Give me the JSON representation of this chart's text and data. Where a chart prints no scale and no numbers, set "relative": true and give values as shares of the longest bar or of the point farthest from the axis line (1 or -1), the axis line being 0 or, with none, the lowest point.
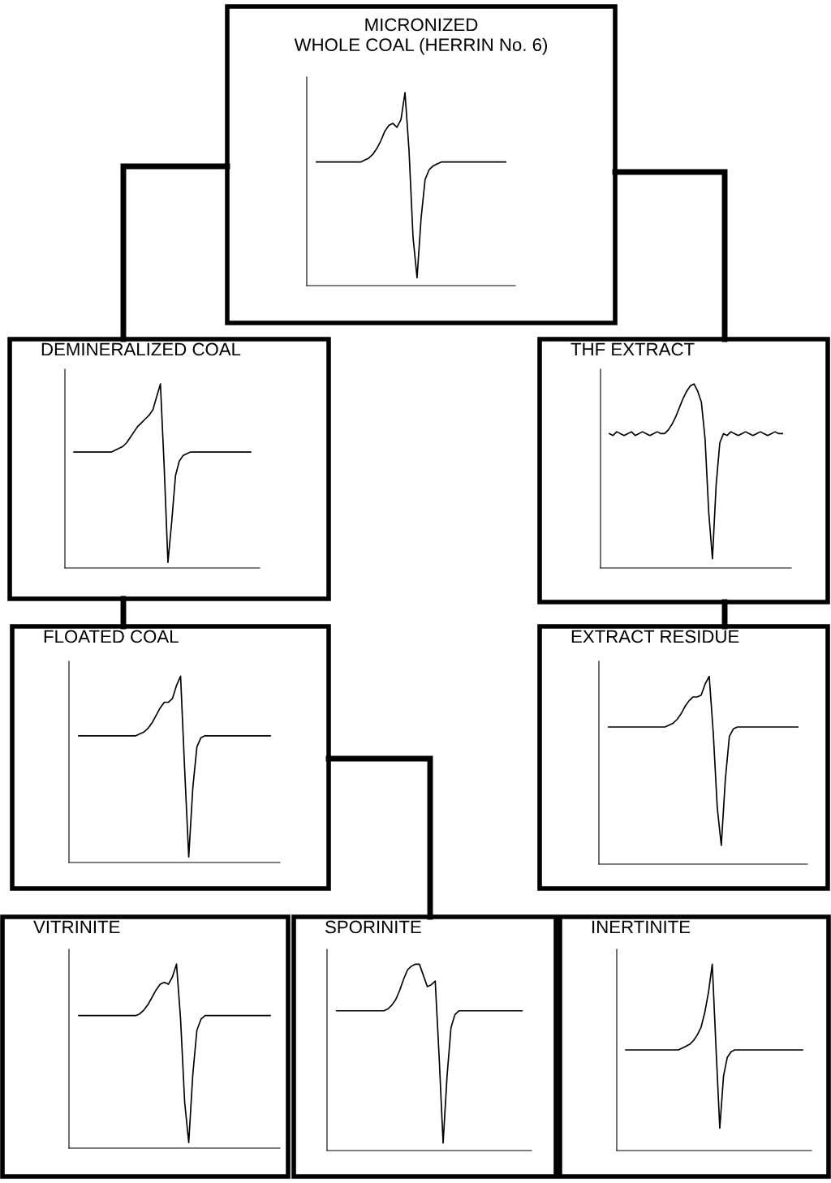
{
  "chart_data": [
    {
      "type": "line",
      "title": "MICRONIZED\nWHOLE COAL (HERRIN No. 6)",
      "relative": true,
      "color": "#000000",
      "categories": [
        null,
        null,
        null,
        null,
        null,
        null,
        null,
        null,
        null,
        null,
        null,
        null,
        null,
        null,
        null,
        null,
        null,
        null,
        null,
        null,
        null,
        null,
        null,
        null,
        null,
        null,
        null,
        null,
        null,
        null,
        null,
        null,
        null,
        null,
        null,
        null,
        null,
        null,
        null,
        null,
        null,
        null,
        null,
        null,
        null,
        null,
        null,
        null
      ],
      "values": [
        0.64,
        0.64,
        0.64,
        0.64,
        0.64,
        0.64,
        0.64,
        0.64,
        0.64,
        0.64,
        0.64,
        0.64,
        0.65,
        0.66,
        0.68,
        0.71,
        0.75,
        0.8,
        0.83,
        0.84,
        0.82,
        0.86,
        1.0,
        0.7,
        0.25,
        0.04,
        0.35,
        0.55,
        0.6,
        0.62,
        0.63,
        0.64,
        0.64,
        0.64,
        0.64,
        0.64,
        0.64,
        0.64,
        0.64,
        0.64,
        0.64,
        0.64,
        0.64,
        0.64,
        0.64,
        0.64,
        0.64,
        0.64
      ]
    },
    {
      "type": "line",
      "title": "DEMINERALIZED COAL",
      "relative": true,
      "color": "#000000",
      "categories": [
        null,
        null,
        null,
        null,
        null,
        null,
        null,
        null,
        null,
        null,
        null,
        null,
        null,
        null,
        null,
        null,
        null,
        null,
        null,
        null,
        null,
        null,
        null,
        null,
        null,
        null,
        null,
        null,
        null,
        null,
        null,
        null,
        null,
        null,
        null,
        null,
        null,
        null,
        null,
        null,
        null,
        null,
        null,
        null,
        null,
        null,
        null,
        null
      ],
      "values": [
        0.63,
        0.63,
        0.63,
        0.63,
        0.63,
        0.63,
        0.63,
        0.63,
        0.63,
        0.63,
        0.63,
        0.64,
        0.65,
        0.66,
        0.68,
        0.71,
        0.74,
        0.77,
        0.79,
        0.81,
        0.83,
        0.86,
        0.93,
        1.0,
        0.55,
        0.03,
        0.25,
        0.5,
        0.58,
        0.61,
        0.62,
        0.63,
        0.63,
        0.63,
        0.63,
        0.63,
        0.63,
        0.63,
        0.63,
        0.63,
        0.63,
        0.63,
        0.63,
        0.63,
        0.63,
        0.63,
        0.63,
        0.63
      ]
    },
    {
      "type": "line",
      "title": "THF EXTRACT",
      "relative": true,
      "color": "#000000",
      "categories": [
        null,
        null,
        null,
        null,
        null,
        null,
        null,
        null,
        null,
        null,
        null,
        null,
        null,
        null,
        null,
        null,
        null,
        null,
        null,
        null,
        null,
        null,
        null,
        null,
        null,
        null,
        null,
        null,
        null,
        null,
        null,
        null,
        null,
        null,
        null,
        null,
        null,
        null,
        null,
        null,
        null,
        null,
        null,
        null,
        null,
        null,
        null,
        null
      ],
      "values": [
        0.73,
        0.72,
        0.74,
        0.73,
        0.72,
        0.73,
        0.74,
        0.72,
        0.73,
        0.74,
        0.73,
        0.72,
        0.73,
        0.74,
        0.73,
        0.73,
        0.75,
        0.78,
        0.82,
        0.87,
        0.92,
        0.96,
        0.99,
        1.0,
        0.96,
        0.9,
        0.7,
        0.3,
        0.05,
        0.45,
        0.68,
        0.73,
        0.72,
        0.74,
        0.73,
        0.72,
        0.73,
        0.74,
        0.73,
        0.72,
        0.73,
        0.74,
        0.73,
        0.72,
        0.73,
        0.74,
        0.73,
        0.73
      ]
    },
    {
      "type": "line",
      "title": "FLOATED COAL",
      "relative": true,
      "color": "#000000",
      "categories": [
        null,
        null,
        null,
        null,
        null,
        null,
        null,
        null,
        null,
        null,
        null,
        null,
        null,
        null,
        null,
        null,
        null,
        null,
        null,
        null,
        null,
        null,
        null,
        null,
        null,
        null,
        null,
        null,
        null,
        null,
        null,
        null,
        null,
        null,
        null,
        null,
        null,
        null,
        null,
        null,
        null,
        null,
        null,
        null,
        null,
        null,
        null,
        null
      ],
      "values": [
        0.68,
        0.68,
        0.68,
        0.68,
        0.68,
        0.68,
        0.68,
        0.68,
        0.68,
        0.68,
        0.68,
        0.68,
        0.68,
        0.68,
        0.68,
        0.69,
        0.7,
        0.72,
        0.75,
        0.79,
        0.83,
        0.86,
        0.86,
        0.88,
        0.95,
        1.0,
        0.5,
        0.03,
        0.4,
        0.62,
        0.67,
        0.68,
        0.68,
        0.68,
        0.68,
        0.68,
        0.68,
        0.68,
        0.68,
        0.68,
        0.68,
        0.68,
        0.68,
        0.68,
        0.68,
        0.68,
        0.68,
        0.68
      ]
    },
    {
      "type": "line",
      "title": "EXTRACT RESIDUE",
      "relative": true,
      "color": "#000000",
      "categories": [
        null,
        null,
        null,
        null,
        null,
        null,
        null,
        null,
        null,
        null,
        null,
        null,
        null,
        null,
        null,
        null,
        null,
        null,
        null,
        null,
        null,
        null,
        null,
        null,
        null,
        null,
        null,
        null,
        null,
        null,
        null,
        null,
        null,
        null,
        null,
        null,
        null,
        null,
        null,
        null,
        null,
        null,
        null,
        null,
        null,
        null,
        null,
        null
      ],
      "values": [
        0.73,
        0.73,
        0.73,
        0.73,
        0.73,
        0.73,
        0.73,
        0.73,
        0.73,
        0.73,
        0.73,
        0.73,
        0.73,
        0.73,
        0.73,
        0.74,
        0.75,
        0.77,
        0.8,
        0.84,
        0.87,
        0.89,
        0.89,
        0.9,
        0.96,
        1.0,
        0.7,
        0.3,
        0.1,
        0.45,
        0.68,
        0.72,
        0.73,
        0.73,
        0.73,
        0.73,
        0.73,
        0.73,
        0.73,
        0.73,
        0.73,
        0.73,
        0.73,
        0.73,
        0.73,
        0.73,
        0.73,
        0.73
      ]
    },
    {
      "type": "line",
      "title": "VITRINITE",
      "relative": true,
      "color": "#000000",
      "categories": [
        null,
        null,
        null,
        null,
        null,
        null,
        null,
        null,
        null,
        null,
        null,
        null,
        null,
        null,
        null,
        null,
        null,
        null,
        null,
        null,
        null,
        null,
        null,
        null,
        null,
        null,
        null,
        null,
        null,
        null,
        null,
        null,
        null,
        null,
        null,
        null,
        null,
        null,
        null,
        null,
        null,
        null,
        null,
        null,
        null,
        null,
        null,
        null
      ],
      "values": [
        0.72,
        0.72,
        0.72,
        0.72,
        0.72,
        0.72,
        0.72,
        0.72,
        0.72,
        0.72,
        0.72,
        0.72,
        0.72,
        0.72,
        0.72,
        0.73,
        0.75,
        0.78,
        0.82,
        0.86,
        0.89,
        0.9,
        0.89,
        0.93,
        1.0,
        0.7,
        0.25,
        0.03,
        0.4,
        0.64,
        0.7,
        0.72,
        0.72,
        0.72,
        0.72,
        0.72,
        0.72,
        0.72,
        0.72,
        0.72,
        0.72,
        0.72,
        0.72,
        0.72,
        0.72,
        0.72,
        0.72,
        0.72
      ]
    },
    {
      "type": "line",
      "title": "SPORINITE",
      "relative": true,
      "color": "#000000",
      "categories": [
        null,
        null,
        null,
        null,
        null,
        null,
        null,
        null,
        null,
        null,
        null,
        null,
        null,
        null,
        null,
        null,
        null,
        null,
        null,
        null,
        null,
        null,
        null,
        null,
        null,
        null,
        null,
        null,
        null,
        null,
        null,
        null,
        null,
        null,
        null,
        null,
        null,
        null,
        null,
        null,
        null,
        null,
        null,
        null,
        null,
        null,
        null,
        null
      ],
      "values": [
        0.75,
        0.75,
        0.75,
        0.75,
        0.75,
        0.75,
        0.75,
        0.75,
        0.75,
        0.75,
        0.75,
        0.75,
        0.75,
        0.76,
        0.78,
        0.81,
        0.86,
        0.92,
        0.97,
        0.99,
        1.0,
        1.0,
        0.94,
        0.88,
        0.89,
        0.91,
        0.5,
        0.04,
        0.4,
        0.66,
        0.73,
        0.75,
        0.75,
        0.75,
        0.75,
        0.75,
        0.75,
        0.75,
        0.75,
        0.75,
        0.75,
        0.75,
        0.75,
        0.75,
        0.75,
        0.75,
        0.75,
        0.75
      ]
    },
    {
      "type": "line",
      "title": "INERTINITE",
      "relative": true,
      "color": "#000000",
      "categories": [
        null,
        null,
        null,
        null,
        null,
        null,
        null,
        null,
        null,
        null,
        null,
        null,
        null,
        null,
        null,
        null,
        null,
        null,
        null,
        null,
        null,
        null,
        null,
        null,
        null,
        null,
        null,
        null,
        null,
        null,
        null,
        null,
        null,
        null,
        null,
        null,
        null,
        null,
        null,
        null,
        null,
        null,
        null,
        null,
        null,
        null,
        null,
        null
      ],
      "values": [
        0.54,
        0.54,
        0.54,
        0.54,
        0.54,
        0.54,
        0.54,
        0.54,
        0.54,
        0.54,
        0.54,
        0.54,
        0.54,
        0.54,
        0.54,
        0.55,
        0.56,
        0.57,
        0.59,
        0.62,
        0.66,
        0.74,
        0.85,
        1.0,
        0.55,
        0.12,
        0.4,
        0.5,
        0.53,
        0.54,
        0.54,
        0.54,
        0.54,
        0.54,
        0.54,
        0.54,
        0.54,
        0.54,
        0.54,
        0.54,
        0.54,
        0.54,
        0.54,
        0.54,
        0.54,
        0.54,
        0.54,
        0.54
      ]
    }
  ]
}
